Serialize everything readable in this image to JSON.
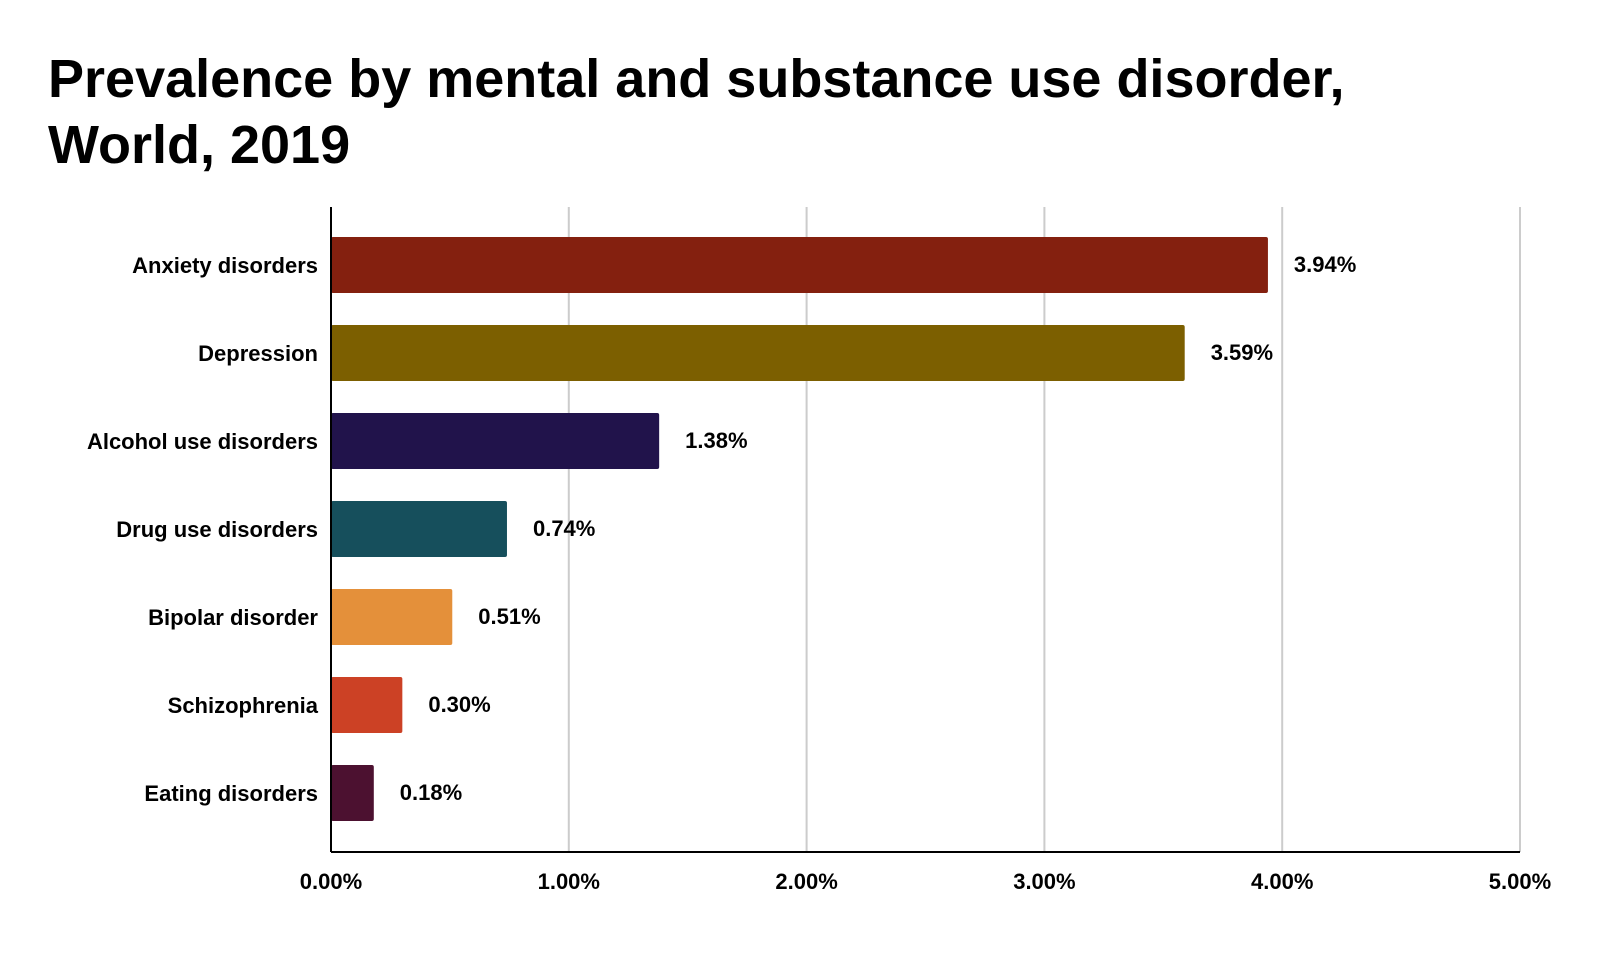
{
  "chart_data": {
    "type": "bar",
    "orientation": "horizontal",
    "title": "Prevalence by mental and substance use disorder, World, 2019",
    "categories": [
      "Anxiety disorders",
      "Depression",
      "Alcohol use disorders",
      "Drug use disorders",
      "Bipolar disorder",
      "Schizophrenia",
      "Eating disorders"
    ],
    "values": [
      3.94,
      3.59,
      1.38,
      0.74,
      0.51,
      0.3,
      0.18
    ],
    "value_labels": [
      "3.94%",
      "3.59%",
      "1.38%",
      "0.74%",
      "0.51%",
      "0.30%",
      "0.18%"
    ],
    "colors": [
      "#84200f",
      "#7c5f00",
      "#21134b",
      "#164f5c",
      "#e4903a",
      "#cc4125",
      "#4c1130"
    ],
    "xlabel": "",
    "ylabel": "",
    "xlim": [
      0,
      5
    ],
    "x_ticks": [
      0,
      1,
      2,
      3,
      4,
      5
    ],
    "x_tick_labels": [
      "0.00%",
      "1.00%",
      "2.00%",
      "3.00%",
      "4.00%",
      "5.00%"
    ],
    "grid": true,
    "legend": "none"
  }
}
